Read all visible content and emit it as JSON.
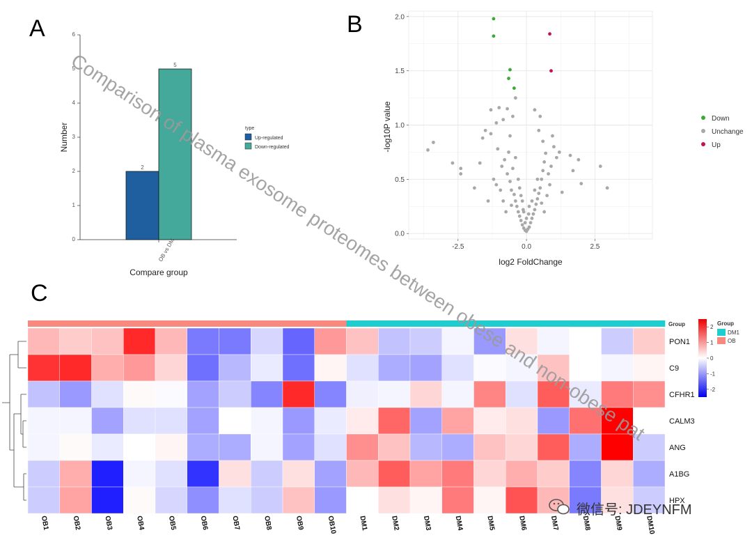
{
  "panels": {
    "a": "A",
    "b": "B",
    "c": "C"
  },
  "watermark": "Comparison of plasma exosome proteomes between obese and non-obese pat",
  "wechat_label": "微信号: JDEYNFM",
  "chart_data": [
    {
      "id": "A",
      "type": "bar",
      "title": "",
      "xlabel": "Compare group",
      "ylabel": "Number",
      "categories": [
        "OB vs DM"
      ],
      "series": [
        {
          "name": "Up-regulated",
          "values": [
            2
          ],
          "color": "#1f5fa0"
        },
        {
          "name": "Down-regulated",
          "values": [
            5
          ],
          "color": "#44a99a"
        }
      ],
      "ylim": [
        0,
        6
      ],
      "yticks": [
        "0",
        "1",
        "2",
        "3",
        "4",
        "5",
        "6"
      ],
      "data_labels": [
        "2",
        "5"
      ],
      "legend_title": "type",
      "legend_position": "right"
    },
    {
      "id": "B",
      "type": "scatter",
      "title": "",
      "xlabel": "log2 FoldChange",
      "ylabel": "-log10P value",
      "xlim": [
        -4.3,
        4.6
      ],
      "ylim": [
        -0.05,
        2.05
      ],
      "xticks": [
        "-2.5",
        "0.0",
        "2.5"
      ],
      "yticks": [
        "0.0",
        "0.5",
        "1.0",
        "1.5",
        "2.0"
      ],
      "legend_position": "right",
      "legend": [
        {
          "name": "Down",
          "color": "#3aaa35"
        },
        {
          "name": "Unchange",
          "color": "#a8a8a8"
        },
        {
          "name": "Up",
          "color": "#c5114e"
        }
      ],
      "points": [
        {
          "x": -1.2,
          "y": 1.98,
          "g": "Down"
        },
        {
          "x": -1.2,
          "y": 1.82,
          "g": "Down"
        },
        {
          "x": -0.6,
          "y": 1.51,
          "g": "Down"
        },
        {
          "x": -0.65,
          "y": 1.43,
          "g": "Down"
        },
        {
          "x": -0.45,
          "y": 1.34,
          "g": "Down"
        },
        {
          "x": 0.85,
          "y": 1.84,
          "g": "Up"
        },
        {
          "x": 0.9,
          "y": 1.5,
          "g": "Up"
        },
        {
          "x": -0.4,
          "y": 1.25,
          "g": "Unchange"
        },
        {
          "x": -1.0,
          "y": 1.16,
          "g": "Unchange"
        },
        {
          "x": -1.3,
          "y": 1.14,
          "g": "Unchange"
        },
        {
          "x": -0.7,
          "y": 1.15,
          "g": "Unchange"
        },
        {
          "x": -0.5,
          "y": 1.08,
          "g": "Unchange"
        },
        {
          "x": 0.3,
          "y": 1.14,
          "g": "Unchange"
        },
        {
          "x": 0.5,
          "y": 1.08,
          "g": "Unchange"
        },
        {
          "x": -1.1,
          "y": 1.02,
          "g": "Unchange"
        },
        {
          "x": -0.85,
          "y": 1.05,
          "g": "Unchange"
        },
        {
          "x": -3.6,
          "y": 0.77,
          "g": "Unchange"
        },
        {
          "x": -3.4,
          "y": 0.84,
          "g": "Unchange"
        },
        {
          "x": -2.7,
          "y": 0.65,
          "g": "Unchange"
        },
        {
          "x": -2.4,
          "y": 0.6,
          "g": "Unchange"
        },
        {
          "x": -2.4,
          "y": 0.55,
          "g": "Unchange"
        },
        {
          "x": -1.6,
          "y": 0.88,
          "g": "Unchange"
        },
        {
          "x": -1.5,
          "y": 0.95,
          "g": "Unchange"
        },
        {
          "x": -1.3,
          "y": 0.92,
          "g": "Unchange"
        },
        {
          "x": -1.7,
          "y": 0.65,
          "g": "Unchange"
        },
        {
          "x": -1.9,
          "y": 0.42,
          "g": "Unchange"
        },
        {
          "x": -1.2,
          "y": 0.5,
          "g": "Unchange"
        },
        {
          "x": -1.1,
          "y": 0.45,
          "g": "Unchange"
        },
        {
          "x": -0.9,
          "y": 0.62,
          "g": "Unchange"
        },
        {
          "x": -0.8,
          "y": 0.68,
          "g": "Unchange"
        },
        {
          "x": -0.7,
          "y": 0.55,
          "g": "Unchange"
        },
        {
          "x": -0.65,
          "y": 0.75,
          "g": "Unchange"
        },
        {
          "x": -0.6,
          "y": 0.48,
          "g": "Unchange"
        },
        {
          "x": -0.55,
          "y": 0.4,
          "g": "Unchange"
        },
        {
          "x": -0.5,
          "y": 0.6,
          "g": "Unchange"
        },
        {
          "x": -0.45,
          "y": 0.36,
          "g": "Unchange"
        },
        {
          "x": -0.4,
          "y": 0.3,
          "g": "Unchange"
        },
        {
          "x": -0.35,
          "y": 0.25,
          "g": "Unchange"
        },
        {
          "x": -0.3,
          "y": 0.2,
          "g": "Unchange"
        },
        {
          "x": -0.25,
          "y": 0.16,
          "g": "Unchange"
        },
        {
          "x": -0.2,
          "y": 0.12,
          "g": "Unchange"
        },
        {
          "x": -0.15,
          "y": 0.08,
          "g": "Unchange"
        },
        {
          "x": -0.1,
          "y": 0.05,
          "g": "Unchange"
        },
        {
          "x": -0.05,
          "y": 0.03,
          "g": "Unchange"
        },
        {
          "x": 0.0,
          "y": 0.02,
          "g": "Unchange"
        },
        {
          "x": 0.05,
          "y": 0.04,
          "g": "Unchange"
        },
        {
          "x": 0.1,
          "y": 0.06,
          "g": "Unchange"
        },
        {
          "x": 0.15,
          "y": 0.1,
          "g": "Unchange"
        },
        {
          "x": 0.2,
          "y": 0.14,
          "g": "Unchange"
        },
        {
          "x": 0.25,
          "y": 0.18,
          "g": "Unchange"
        },
        {
          "x": 0.3,
          "y": 0.22,
          "g": "Unchange"
        },
        {
          "x": 0.35,
          "y": 0.27,
          "g": "Unchange"
        },
        {
          "x": 0.4,
          "y": 0.32,
          "g": "Unchange"
        },
        {
          "x": 0.45,
          "y": 0.37,
          "g": "Unchange"
        },
        {
          "x": 0.5,
          "y": 0.42,
          "g": "Unchange"
        },
        {
          "x": 0.55,
          "y": 0.5,
          "g": "Unchange"
        },
        {
          "x": 0.6,
          "y": 0.58,
          "g": "Unchange"
        },
        {
          "x": 0.65,
          "y": 0.66,
          "g": "Unchange"
        },
        {
          "x": 0.7,
          "y": 0.74,
          "g": "Unchange"
        },
        {
          "x": 0.8,
          "y": 0.55,
          "g": "Unchange"
        },
        {
          "x": 0.9,
          "y": 0.62,
          "g": "Unchange"
        },
        {
          "x": 1.0,
          "y": 0.8,
          "g": "Unchange"
        },
        {
          "x": 1.1,
          "y": 0.7,
          "g": "Unchange"
        },
        {
          "x": 1.2,
          "y": 0.75,
          "g": "Unchange"
        },
        {
          "x": 1.6,
          "y": 0.72,
          "g": "Unchange"
        },
        {
          "x": 1.7,
          "y": 0.58,
          "g": "Unchange"
        },
        {
          "x": 1.9,
          "y": 0.68,
          "g": "Unchange"
        },
        {
          "x": 2.0,
          "y": 0.46,
          "g": "Unchange"
        },
        {
          "x": 2.7,
          "y": 0.62,
          "g": "Unchange"
        },
        {
          "x": 2.95,
          "y": 0.42,
          "g": "Unchange"
        },
        {
          "x": -0.3,
          "y": 0.5,
          "g": "Unchange"
        },
        {
          "x": -0.25,
          "y": 0.42,
          "g": "Unchange"
        },
        {
          "x": -0.2,
          "y": 0.35,
          "g": "Unchange"
        },
        {
          "x": -0.15,
          "y": 0.3,
          "g": "Unchange"
        },
        {
          "x": -0.1,
          "y": 0.2,
          "g": "Unchange"
        },
        {
          "x": 0.1,
          "y": 0.25,
          "g": "Unchange"
        },
        {
          "x": 0.2,
          "y": 0.3,
          "g": "Unchange"
        },
        {
          "x": 0.3,
          "y": 0.4,
          "g": "Unchange"
        },
        {
          "x": 0.4,
          "y": 0.5,
          "g": "Unchange"
        },
        {
          "x": -0.6,
          "y": 0.9,
          "g": "Unchange"
        },
        {
          "x": -0.4,
          "y": 0.7,
          "g": "Unchange"
        },
        {
          "x": 0.6,
          "y": 0.85,
          "g": "Unchange"
        },
        {
          "x": 0.45,
          "y": 0.95,
          "g": "Unchange"
        },
        {
          "x": -0.85,
          "y": 0.3,
          "g": "Unchange"
        },
        {
          "x": 0.75,
          "y": 0.35,
          "g": "Unchange"
        },
        {
          "x": -0.75,
          "y": 0.2,
          "g": "Unchange"
        },
        {
          "x": 0.65,
          "y": 0.2,
          "g": "Unchange"
        },
        {
          "x": -1.4,
          "y": 0.3,
          "g": "Unchange"
        },
        {
          "x": 1.3,
          "y": 0.38,
          "g": "Unchange"
        },
        {
          "x": -0.05,
          "y": 0.1,
          "g": "Unchange"
        },
        {
          "x": 0.0,
          "y": 0.14,
          "g": "Unchange"
        },
        {
          "x": 0.08,
          "y": 0.18,
          "g": "Unchange"
        },
        {
          "x": -0.12,
          "y": 0.22,
          "g": "Unchange"
        },
        {
          "x": 0.55,
          "y": 0.28,
          "g": "Unchange"
        },
        {
          "x": -0.55,
          "y": 0.26,
          "g": "Unchange"
        },
        {
          "x": 0.85,
          "y": 0.45,
          "g": "Unchange"
        },
        {
          "x": -0.95,
          "y": 0.4,
          "g": "Unchange"
        },
        {
          "x": -1.05,
          "y": 0.78,
          "g": "Unchange"
        },
        {
          "x": 0.95,
          "y": 0.9,
          "g": "Unchange"
        }
      ]
    },
    {
      "id": "C",
      "type": "heatmap",
      "rows": [
        "PON1",
        "C9",
        "CFHR1",
        "CALM3",
        "ANG",
        "A1BG",
        "HPX"
      ],
      "columns": [
        "OB1",
        "OB2",
        "OB3",
        "OB4",
        "OB5",
        "OB6",
        "OB7",
        "OB8",
        "OB9",
        "OB10",
        "DM1",
        "DM2",
        "DM3",
        "DM4",
        "DM5",
        "DM6",
        "DM7",
        "DM8",
        "DM9",
        "DM10"
      ],
      "groups": [
        "OB",
        "OB",
        "OB",
        "OB",
        "OB",
        "OB",
        "OB",
        "OB",
        "OB",
        "OB",
        "DM",
        "DM",
        "DM",
        "DM",
        "DM",
        "DM",
        "DM",
        "DM",
        "DM",
        "DM"
      ],
      "group_label": "Group",
      "group_legend_title": "Group",
      "group_colors": {
        "DM": "#1ecdd0",
        "OB": "#f7897f"
      },
      "scale_range": [
        -2.5,
        2.5
      ],
      "scale_ticks": [
        "2",
        "1",
        "0",
        "-1",
        "-2"
      ],
      "values": [
        [
          0.7,
          0.5,
          0.6,
          2.1,
          0.7,
          -1.3,
          -1.3,
          -0.4,
          -1.5,
          1.0,
          0.6,
          -0.6,
          -0.5,
          -0.1,
          -1.0,
          0.3,
          -0.1,
          0.0,
          -0.5,
          0.5
        ],
        [
          2.0,
          2.1,
          0.8,
          1.0,
          0.4,
          -1.4,
          -0.7,
          -0.2,
          -1.4,
          0.1,
          -0.3,
          -0.8,
          -0.9,
          -0.3,
          -0.05,
          -0.1,
          0.6,
          0.0,
          -0.1,
          0.1
        ],
        [
          -0.6,
          -1.0,
          -0.3,
          0.05,
          -0.05,
          -0.9,
          -0.5,
          -1.2,
          2.1,
          -1.2,
          -0.15,
          -0.1,
          0.4,
          -0.1,
          1.2,
          -0.3,
          1.6,
          -0.2,
          1.3,
          1.1
        ],
        [
          -0.1,
          -0.1,
          -0.9,
          -0.3,
          -0.3,
          -0.9,
          0.0,
          -0.1,
          -1.0,
          -0.2,
          0.2,
          1.5,
          -0.9,
          0.9,
          0.2,
          0.3,
          -1.0,
          1.4,
          2.5,
          0.0
        ],
        [
          -0.1,
          0.05,
          -0.2,
          0.0,
          0.1,
          -0.8,
          -0.8,
          -0.1,
          -0.9,
          -0.3,
          1.1,
          0.6,
          -0.7,
          -0.8,
          0.6,
          0.4,
          1.6,
          -0.8,
          2.5,
          -0.5
        ],
        [
          -0.5,
          0.8,
          -2.2,
          -0.1,
          -0.3,
          -2.0,
          0.3,
          -0.5,
          0.3,
          -0.9,
          0.7,
          1.6,
          0.9,
          1.3,
          0.4,
          0.8,
          0.5,
          -1.2,
          0.4,
          -0.8
        ],
        [
          -0.5,
          0.9,
          -2.2,
          0.05,
          -0.4,
          -1.1,
          -0.3,
          -0.5,
          0.6,
          -1.0,
          0.0,
          0.3,
          0.1,
          1.3,
          0.1,
          1.7,
          0.7,
          -1.3,
          0.3,
          -0.5
        ]
      ]
    }
  ]
}
